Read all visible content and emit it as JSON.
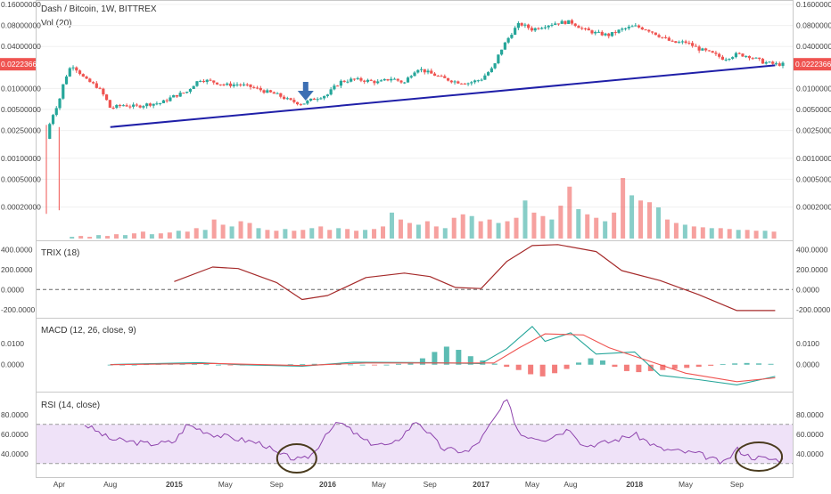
{
  "chart_data": {
    "type": "candlestick",
    "title": "Dash / Bitcoin, 1W, BITTREX",
    "price": {
      "scale": "log",
      "right_ticks": [
        "0.16000000",
        "0.08000000",
        "0.04000000",
        "0.02223669",
        "0.01000000",
        "0.00500000",
        "0.00250000",
        "0.00100000",
        "0.00050000",
        "0.00020000"
      ],
      "left_ticks": [
        "0.16000000",
        "0.08000000",
        "0.04000000",
        "0.02223669",
        "0.01000000",
        "0.00500000",
        "0.00250000",
        "0.00100000",
        "0.00050000",
        "0.00020000"
      ],
      "last_price": "0.02223669",
      "series": [
        {
          "t": "2014-03",
          "v": 0.0019
        },
        {
          "t": "2014-04",
          "v": 0.0065
        },
        {
          "t": "2014-05",
          "v": 0.022
        },
        {
          "t": "2014-06",
          "v": 0.0135
        },
        {
          "t": "2014-07",
          "v": 0.0105
        },
        {
          "t": "2014-08",
          "v": 0.0052
        },
        {
          "t": "2014-09",
          "v": 0.0058
        },
        {
          "t": "2014-10",
          "v": 0.0055
        },
        {
          "t": "2014-11",
          "v": 0.006
        },
        {
          "t": "2014-12",
          "v": 0.0062
        },
        {
          "t": "2015-01",
          "v": 0.0078
        },
        {
          "t": "2015-02",
          "v": 0.009
        },
        {
          "t": "2015-03",
          "v": 0.0135
        },
        {
          "t": "2015-04",
          "v": 0.0125
        },
        {
          "t": "2015-05",
          "v": 0.0112
        },
        {
          "t": "2015-06",
          "v": 0.0115
        },
        {
          "t": "2015-07",
          "v": 0.0105
        },
        {
          "t": "2015-08",
          "v": 0.0092
        },
        {
          "t": "2015-09",
          "v": 0.0082
        },
        {
          "t": "2015-10",
          "v": 0.0067
        },
        {
          "t": "2015-11",
          "v": 0.006
        },
        {
          "t": "2015-12",
          "v": 0.0072
        },
        {
          "t": "2016-01",
          "v": 0.0082
        },
        {
          "t": "2016-02",
          "v": 0.0125
        },
        {
          "t": "2016-03",
          "v": 0.0135
        },
        {
          "t": "2016-04",
          "v": 0.013
        },
        {
          "t": "2016-05",
          "v": 0.0122
        },
        {
          "t": "2016-06",
          "v": 0.014
        },
        {
          "t": "2016-07",
          "v": 0.012
        },
        {
          "t": "2016-08",
          "v": 0.0195
        },
        {
          "t": "2016-09",
          "v": 0.0165
        },
        {
          "t": "2016-10",
          "v": 0.014
        },
        {
          "t": "2016-11",
          "v": 0.0125
        },
        {
          "t": "2016-12",
          "v": 0.012
        },
        {
          "t": "2017-01",
          "v": 0.0135
        },
        {
          "t": "2017-02",
          "v": 0.02
        },
        {
          "t": "2017-03",
          "v": 0.048
        },
        {
          "t": "2017-04",
          "v": 0.085
        },
        {
          "t": "2017-05",
          "v": 0.07
        },
        {
          "t": "2017-06",
          "v": 0.08
        },
        {
          "t": "2017-07",
          "v": 0.088
        },
        {
          "t": "2017-08",
          "v": 0.09
        },
        {
          "t": "2017-09",
          "v": 0.07
        },
        {
          "t": "2017-10",
          "v": 0.062
        },
        {
          "t": "2017-11",
          "v": 0.058
        },
        {
          "t": "2017-12",
          "v": 0.07
        },
        {
          "t": "2018-01",
          "v": 0.078
        },
        {
          "t": "2018-02",
          "v": 0.07
        },
        {
          "t": "2018-03",
          "v": 0.056
        },
        {
          "t": "2018-04",
          "v": 0.045
        },
        {
          "t": "2018-05",
          "v": 0.046
        },
        {
          "t": "2018-06",
          "v": 0.037
        },
        {
          "t": "2018-07",
          "v": 0.032
        },
        {
          "t": "2018-08",
          "v": 0.0265
        },
        {
          "t": "2018-09",
          "v": 0.031
        },
        {
          "t": "2018-10",
          "v": 0.029
        },
        {
          "t": "2018-11",
          "v": 0.024
        },
        {
          "t": "2018-12",
          "v": 0.0222
        }
      ],
      "trendline": {
        "color": "#1f1fa8",
        "from": {
          "t": "2014-08",
          "v": 0.0028
        },
        "to": {
          "t": "2018-12",
          "v": 0.0215
        }
      }
    },
    "volume": {
      "label": "Vol (20)",
      "values": [
        2,
        3,
        2,
        4,
        3,
        5,
        4,
        6,
        8,
        5,
        6,
        7,
        9,
        8,
        12,
        10,
        22,
        16,
        14,
        20,
        18,
        12,
        10,
        9,
        11,
        9,
        10,
        12,
        14,
        10,
        12,
        11,
        9,
        10,
        11,
        14,
        30,
        22,
        18,
        16,
        20,
        14,
        12,
        24,
        28,
        26,
        20,
        22,
        18,
        20,
        24,
        44,
        30,
        26,
        22,
        38,
        60,
        34,
        28,
        24,
        20,
        30,
        70,
        50,
        44,
        42,
        36,
        22,
        18,
        16,
        14,
        13,
        12,
        12,
        11,
        10,
        10,
        9,
        9,
        8
      ]
    },
    "trix": {
      "label": "TRIX (18)",
      "ticks": [
        "400.0000",
        "200.0000",
        "0.0000",
        "-200.0000"
      ],
      "series": [
        {
          "t": "2015-01",
          "v": 80
        },
        {
          "t": "2015-04",
          "v": 225
        },
        {
          "t": "2015-06",
          "v": 210
        },
        {
          "t": "2015-09",
          "v": 70
        },
        {
          "t": "2015-11",
          "v": -100
        },
        {
          "t": "2016-01",
          "v": -60
        },
        {
          "t": "2016-04",
          "v": 120
        },
        {
          "t": "2016-07",
          "v": 165
        },
        {
          "t": "2016-09",
          "v": 130
        },
        {
          "t": "2016-11",
          "v": 20
        },
        {
          "t": "2017-01",
          "v": 10
        },
        {
          "t": "2017-03",
          "v": 280
        },
        {
          "t": "2017-05",
          "v": 440
        },
        {
          "t": "2017-07",
          "v": 450
        },
        {
          "t": "2017-10",
          "v": 380
        },
        {
          "t": "2017-12",
          "v": 190
        },
        {
          "t": "2018-03",
          "v": 90
        },
        {
          "t": "2018-06",
          "v": -50
        },
        {
          "t": "2018-09",
          "v": -210
        },
        {
          "t": "2018-12",
          "v": -210
        }
      ]
    },
    "macd": {
      "label": "MACD (12, 26, close, 9)",
      "ticks": [
        "0.0100",
        "0.0000"
      ],
      "macd_line": [
        {
          "t": "2014-08",
          "v": 0.0001
        },
        {
          "t": "2015-03",
          "v": 0.001
        },
        {
          "t": "2015-06",
          "v": 0.0
        },
        {
          "t": "2015-11",
          "v": -0.0007
        },
        {
          "t": "2016-03",
          "v": 0.0012
        },
        {
          "t": "2016-09",
          "v": 0.001
        },
        {
          "t": "2017-01",
          "v": 0.0005
        },
        {
          "t": "2017-03",
          "v": 0.0075
        },
        {
          "t": "2017-05",
          "v": 0.018
        },
        {
          "t": "2017-06",
          "v": 0.011
        },
        {
          "t": "2017-08",
          "v": 0.015
        },
        {
          "t": "2017-10",
          "v": 0.005
        },
        {
          "t": "2018-01",
          "v": 0.006
        },
        {
          "t": "2018-03",
          "v": -0.005
        },
        {
          "t": "2018-06",
          "v": -0.007
        },
        {
          "t": "2018-09",
          "v": -0.0095
        },
        {
          "t": "2018-12",
          "v": -0.0055
        }
      ],
      "signal_line": [
        {
          "t": "2014-08",
          "v": 0.0
        },
        {
          "t": "2015-04",
          "v": 0.0006
        },
        {
          "t": "2015-11",
          "v": -0.0004
        },
        {
          "t": "2016-04",
          "v": 0.0008
        },
        {
          "t": "2016-10",
          "v": 0.0008
        },
        {
          "t": "2017-02",
          "v": 0.0008
        },
        {
          "t": "2017-04",
          "v": 0.008
        },
        {
          "t": "2017-06",
          "v": 0.0145
        },
        {
          "t": "2017-09",
          "v": 0.014
        },
        {
          "t": "2017-11",
          "v": 0.008
        },
        {
          "t": "2018-02",
          "v": 0.002
        },
        {
          "t": "2018-05",
          "v": -0.004
        },
        {
          "t": "2018-09",
          "v": -0.008
        },
        {
          "t": "2018-12",
          "v": -0.0062
        }
      ],
      "hist": [
        0,
        0,
        0,
        0.0002,
        0.0003,
        0.0004,
        0.0005,
        0.0004,
        0.0002,
        0,
        -0.0002,
        -0.0003,
        -0.0003,
        -0.0002,
        0,
        0.0002,
        0.0003,
        0.0004,
        0.0003,
        0.0002,
        0.0001,
        0,
        -0.0001,
        0,
        0.0004,
        0.0012,
        0.003,
        0.006,
        0.0085,
        0.007,
        0.004,
        0.002,
        0.0005,
        -0.001,
        -0.0025,
        -0.0045,
        -0.0055,
        -0.004,
        -0.002,
        0.001,
        0.003,
        0.002,
        -0.001,
        -0.003,
        -0.0035,
        -0.003,
        -0.0025,
        -0.002,
        -0.0015,
        -0.001,
        -0.0005,
        0.0003,
        0.0006,
        0.0008,
        0.0006,
        0.0004
      ]
    },
    "rsi": {
      "label": "RSI (14, close)",
      "ticks": [
        "80.0000",
        "60.0000",
        "40.0000"
      ],
      "band": [
        30,
        70
      ],
      "series": [
        {
          "t": "2014-06",
          "v": 70
        },
        {
          "t": "2014-08",
          "v": 55
        },
        {
          "t": "2014-11",
          "v": 50
        },
        {
          "t": "2015-01",
          "v": 52
        },
        {
          "t": "2015-02",
          "v": 70
        },
        {
          "t": "2015-04",
          "v": 60
        },
        {
          "t": "2015-06",
          "v": 55
        },
        {
          "t": "2015-08",
          "v": 50
        },
        {
          "t": "2015-09",
          "v": 40
        },
        {
          "t": "2015-11",
          "v": 33
        },
        {
          "t": "2015-12",
          "v": 42
        },
        {
          "t": "2016-01",
          "v": 64
        },
        {
          "t": "2016-02",
          "v": 72
        },
        {
          "t": "2016-04",
          "v": 52
        },
        {
          "t": "2016-06",
          "v": 48
        },
        {
          "t": "2016-08",
          "v": 74
        },
        {
          "t": "2016-10",
          "v": 45
        },
        {
          "t": "2016-12",
          "v": 42
        },
        {
          "t": "2017-01",
          "v": 55
        },
        {
          "t": "2017-03",
          "v": 95
        },
        {
          "t": "2017-04",
          "v": 60
        },
        {
          "t": "2017-06",
          "v": 55
        },
        {
          "t": "2017-08",
          "v": 66
        },
        {
          "t": "2017-09",
          "v": 48
        },
        {
          "t": "2017-11",
          "v": 52
        },
        {
          "t": "2018-01",
          "v": 60
        },
        {
          "t": "2018-03",
          "v": 45
        },
        {
          "t": "2018-06",
          "v": 40
        },
        {
          "t": "2018-08",
          "v": 30
        },
        {
          "t": "2018-09",
          "v": 45
        },
        {
          "t": "2018-10",
          "v": 37
        },
        {
          "t": "2018-12",
          "v": 34
        }
      ]
    },
    "x_ticks": [
      {
        "label": "Apr",
        "t": "2014-04"
      },
      {
        "label": "Aug",
        "t": "2014-08"
      },
      {
        "label": "2015",
        "t": "2015-01"
      },
      {
        "label": "May",
        "t": "2015-05"
      },
      {
        "label": "Sep",
        "t": "2015-09"
      },
      {
        "label": "2016",
        "t": "2016-01"
      },
      {
        "label": "May",
        "t": "2016-05"
      },
      {
        "label": "Sep",
        "t": "2016-09"
      },
      {
        "label": "2017",
        "t": "2017-01"
      },
      {
        "label": "May",
        "t": "2017-05"
      },
      {
        "label": "Aug",
        "t": "2017-08"
      },
      {
        "label": "2018",
        "t": "2018-01"
      },
      {
        "label": "May",
        "t": "2018-05"
      },
      {
        "label": "Sep",
        "t": "2018-09"
      }
    ],
    "colors": {
      "up": "#26a69a",
      "down": "#ef5350",
      "trix": "#a52a2a",
      "macd": "#26a69a",
      "signal": "#ef5350",
      "rsi": "#8e44ad",
      "rsi_band": "#e8d5f5",
      "trendline": "#1f1fa8",
      "arrow": "#3d6fb3",
      "circle": "#4a3b1e"
    }
  }
}
